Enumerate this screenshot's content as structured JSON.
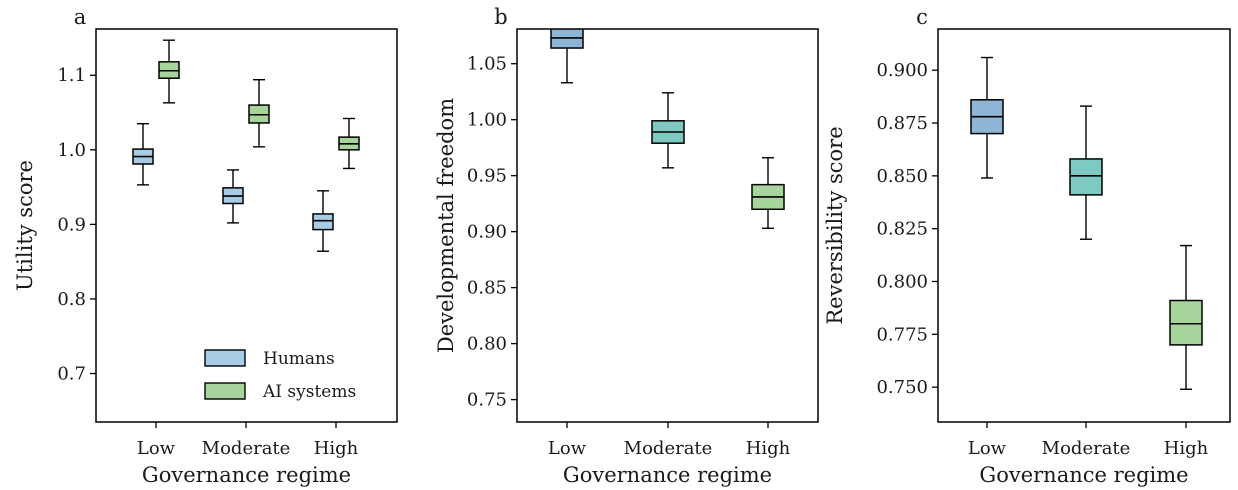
{
  "chart_data": [
    {
      "type": "box",
      "panel_label": "a",
      "xlabel": "Governance regime",
      "ylabel": "Utility score",
      "categories": [
        "Low",
        "Moderate",
        "High"
      ],
      "ylim": [
        0.635,
        1.162
      ],
      "yticks": [
        0.7,
        0.8,
        0.9,
        1.0,
        1.1
      ],
      "ytick_labels": [
        "0.7",
        "0.8",
        "0.9",
        "1.0",
        "1.1"
      ],
      "grid": false,
      "legend_position": "lower-right",
      "series": [
        {
          "name": "Humans",
          "color": "#a6cce6",
          "boxes": [
            {
              "whislo": 0.953,
              "q1": 0.981,
              "med": 0.991,
              "q3": 1.001,
              "whishi": 1.035
            },
            {
              "whislo": 0.902,
              "q1": 0.928,
              "med": 0.938,
              "q3": 0.949,
              "whishi": 0.973
            },
            {
              "whislo": 0.864,
              "q1": 0.893,
              "med": 0.905,
              "q3": 0.914,
              "whishi": 0.945
            }
          ]
        },
        {
          "name": "AI systems",
          "color": "#a7d49a",
          "boxes": [
            {
              "whislo": 1.063,
              "q1": 1.096,
              "med": 1.106,
              "q3": 1.118,
              "whishi": 1.147
            },
            {
              "whislo": 1.004,
              "q1": 1.036,
              "med": 1.047,
              "q3": 1.06,
              "whishi": 1.094
            },
            {
              "whislo": 0.975,
              "q1": 1.0,
              "med": 1.008,
              "q3": 1.017,
              "whishi": 1.042
            }
          ]
        }
      ]
    },
    {
      "type": "box",
      "panel_label": "b",
      "xlabel": "Governance regime",
      "ylabel": "Developmental freedom",
      "categories": [
        "Low",
        "Moderate",
        "High"
      ],
      "ylim": [
        0.73,
        1.081
      ],
      "yticks": [
        0.75,
        0.8,
        0.85,
        0.9,
        0.95,
        1.0,
        1.05
      ],
      "ytick_labels": [
        "0.75",
        "0.80",
        "0.85",
        "0.90",
        "0.95",
        "1.00",
        "1.05"
      ],
      "grid": false,
      "boxes": [
        {
          "whislo": 1.033,
          "q1": 1.064,
          "med": 1.073,
          "q3": 1.085,
          "whishi": 1.11,
          "color": "#8eb4d6"
        },
        {
          "whislo": 0.957,
          "q1": 0.979,
          "med": 0.989,
          "q3": 0.999,
          "whishi": 1.024,
          "color": "#7ec9c1"
        },
        {
          "whislo": 0.903,
          "q1": 0.92,
          "med": 0.931,
          "q3": 0.942,
          "whishi": 0.966,
          "color": "#a7d49a"
        }
      ]
    },
    {
      "type": "box",
      "panel_label": "c",
      "xlabel": "Governance regime",
      "ylabel": "Reversibility score",
      "categories": [
        "Low",
        "Moderate",
        "High"
      ],
      "ylim": [
        0.7335,
        0.9195
      ],
      "yticks": [
        0.75,
        0.775,
        0.8,
        0.825,
        0.85,
        0.875,
        0.9
      ],
      "ytick_labels": [
        "0.750",
        "0.775",
        "0.800",
        "0.825",
        "0.850",
        "0.875",
        "0.900"
      ],
      "grid": false,
      "boxes": [
        {
          "whislo": 0.849,
          "q1": 0.87,
          "med": 0.878,
          "q3": 0.886,
          "whishi": 0.906,
          "color": "#8eb4d6"
        },
        {
          "whislo": 0.82,
          "q1": 0.841,
          "med": 0.85,
          "q3": 0.858,
          "whishi": 0.883,
          "color": "#7ec9c1"
        },
        {
          "whislo": 0.749,
          "q1": 0.77,
          "med": 0.78,
          "q3": 0.791,
          "whishi": 0.817,
          "color": "#a7d49a"
        }
      ]
    }
  ]
}
